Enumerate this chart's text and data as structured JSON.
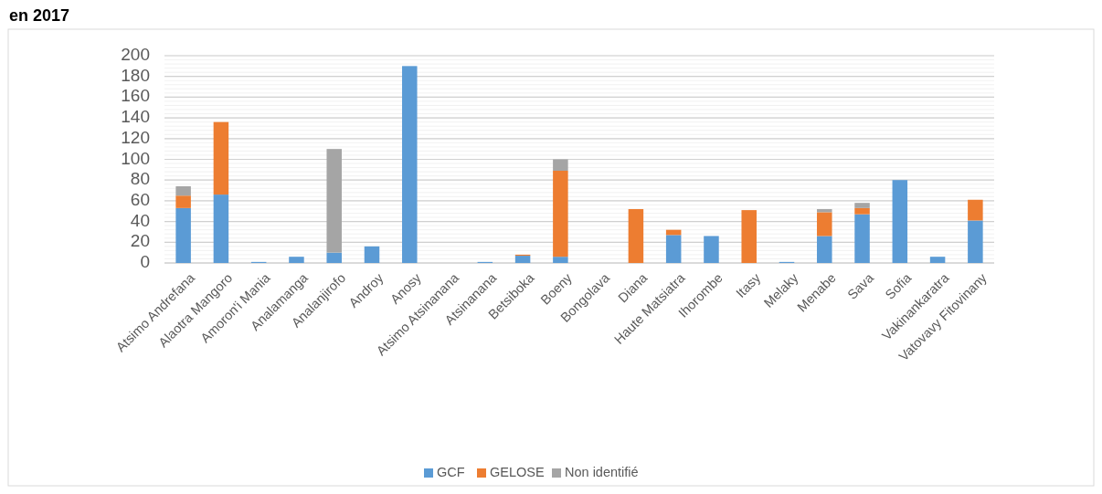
{
  "chart_data": {
    "type": "bar",
    "title": "en 2017",
    "stacked": true,
    "grid": "y",
    "legend": "bottom",
    "categories": [
      "Atsimo Andrefana",
      "Alaotra Mangoro",
      "Amoron'i Mania",
      "Analamanga",
      "Analanjirofo",
      "Androy",
      "Anosy",
      "Atsimo Atsinanana",
      "Atsinanana",
      "Betsiboka",
      "Boeny",
      "Bongolava",
      "Diana",
      "Haute Matsiatra",
      "Ihorombe",
      "Itasy",
      "Melaky",
      "Menabe",
      "Sava",
      "Sofia",
      "Vakinankaratra",
      "Vatovavy Fitovinany"
    ],
    "ylim": [
      0,
      200
    ],
    "yticks": [
      0,
      20,
      40,
      60,
      80,
      100,
      120,
      140,
      160,
      180,
      200
    ],
    "series": [
      {
        "name": "GCF",
        "color": "#5b9bd5",
        "values": [
          53,
          66,
          1,
          6,
          10,
          16,
          190,
          0,
          1,
          7,
          6,
          0,
          0,
          27,
          26,
          0,
          1,
          26,
          47,
          80,
          6,
          41
        ]
      },
      {
        "name": "GELOSE",
        "color": "#ed7d31",
        "values": [
          12,
          70,
          0,
          0,
          0,
          0,
          0,
          0,
          0,
          1,
          83,
          0,
          52,
          5,
          0,
          51,
          0,
          23,
          6,
          0,
          0,
          20
        ]
      },
      {
        "name": "Non identifié",
        "color": "#a5a5a5",
        "values": [
          9,
          0,
          0,
          0,
          100,
          0,
          0,
          0,
          0,
          0,
          11,
          0,
          0,
          0,
          0,
          0,
          0,
          3,
          5,
          0,
          0,
          0
        ]
      }
    ]
  }
}
